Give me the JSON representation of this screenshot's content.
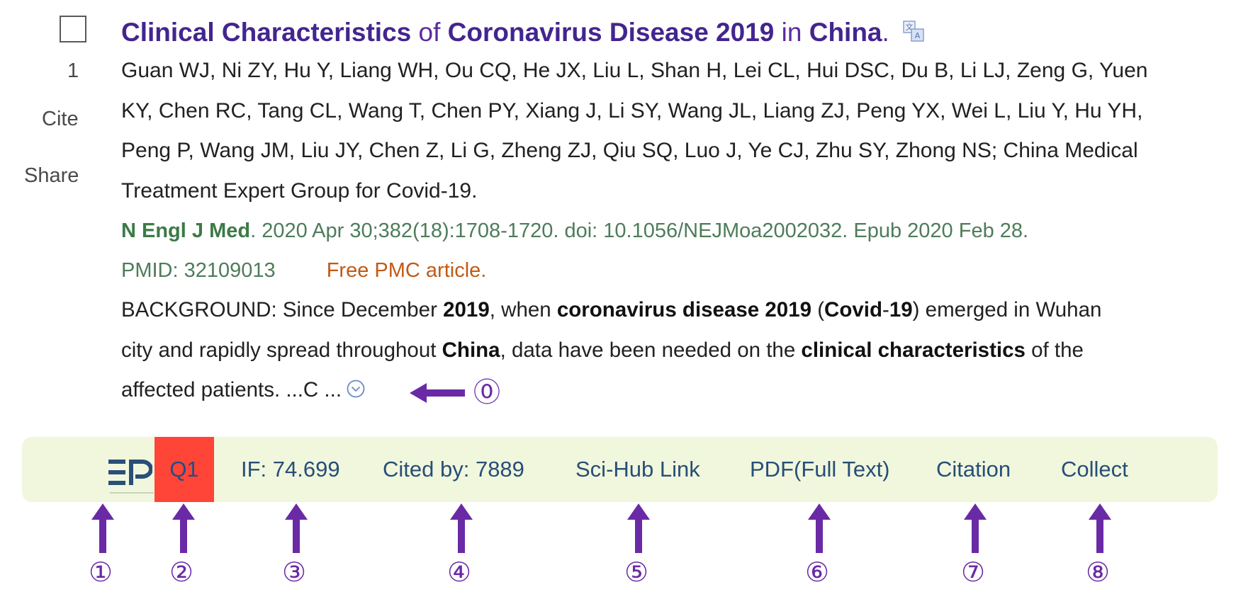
{
  "result": {
    "number": "1",
    "cite_label": "Cite",
    "share_label": "Share",
    "title_segments": [
      {
        "text": "Clinical Characteristics",
        "bold": true
      },
      {
        "text": " of ",
        "bold": false
      },
      {
        "text": "Coronavirus Disease 2019",
        "bold": true
      },
      {
        "text": " in ",
        "bold": false
      },
      {
        "text": "China",
        "bold": true
      },
      {
        "text": ".",
        "bold": false
      }
    ],
    "authors_lines": [
      "Guan WJ, Ni ZY, Hu Y, Liang WH, Ou CQ, He JX, Liu L, Shan H, Lei CL, Hui DSC, Du B, Li LJ, Zeng G, Yuen",
      "KY, Chen RC, Tang CL, Wang T, Chen PY, Xiang J, Li SY, Wang JL, Liang ZJ, Peng YX, Wei L, Liu Y, Hu YH,",
      "Peng P, Wang JM, Liu JY, Chen Z, Li G, Zheng ZJ, Qiu SQ, Luo J, Ye CJ, Zhu SY, Zhong NS; China Medical",
      "Treatment Expert Group for Covid-19."
    ],
    "journal": "N Engl J Med",
    "citation_rest": ". 2020 Apr 30;382(18):1708-1720. doi: 10.1056/NEJMoa2002032. Epub 2020 Feb 28.",
    "pmid": "PMID: 32109013",
    "free_pmc": "Free PMC article.",
    "snippet_lines": [
      [
        {
          "t": "BACKGROUND: Since December ",
          "b": false
        },
        {
          "t": "2019",
          "b": true
        },
        {
          "t": ", when ",
          "b": false
        },
        {
          "t": "coronavirus disease 2019",
          "b": true
        },
        {
          "t": " (",
          "b": false
        },
        {
          "t": "Covid",
          "b": true
        },
        {
          "t": "-",
          "b": false
        },
        {
          "t": "19",
          "b": true
        },
        {
          "t": ") emerged in Wuhan",
          "b": false
        }
      ],
      [
        {
          "t": "city and rapidly spread throughout ",
          "b": false
        },
        {
          "t": "China",
          "b": true
        },
        {
          "t": ", data have been needed on the ",
          "b": false
        },
        {
          "t": "clinical characteristics",
          "b": true
        },
        {
          "t": " of the",
          "b": false
        }
      ],
      [
        {
          "t": "affected patients. ...C ...",
          "b": false
        }
      ]
    ]
  },
  "toolbar": {
    "logo_icon": "easy-pubmed-ep-logo",
    "quartile": "Q1",
    "impact_factor": "IF: 74.699",
    "cited_by": "Cited by: 7889",
    "scihub": "Sci-Hub Link",
    "pdf": "PDF(Full Text)",
    "citation": "Citation",
    "collect": "Collect"
  },
  "annotations": {
    "expand_marker": "⓪",
    "markers": [
      "①",
      "②",
      "③",
      "④",
      "⑤",
      "⑥",
      "⑦",
      "⑧"
    ]
  },
  "colors": {
    "title": "#43258f",
    "journal": "#3d7a46",
    "free_pmc": "#c15a15",
    "toolbar_bg": "#f1f7dd",
    "toolbar_text": "#274e78",
    "q1_bg": "#ff4438",
    "annotation": "#6a2aa6"
  }
}
